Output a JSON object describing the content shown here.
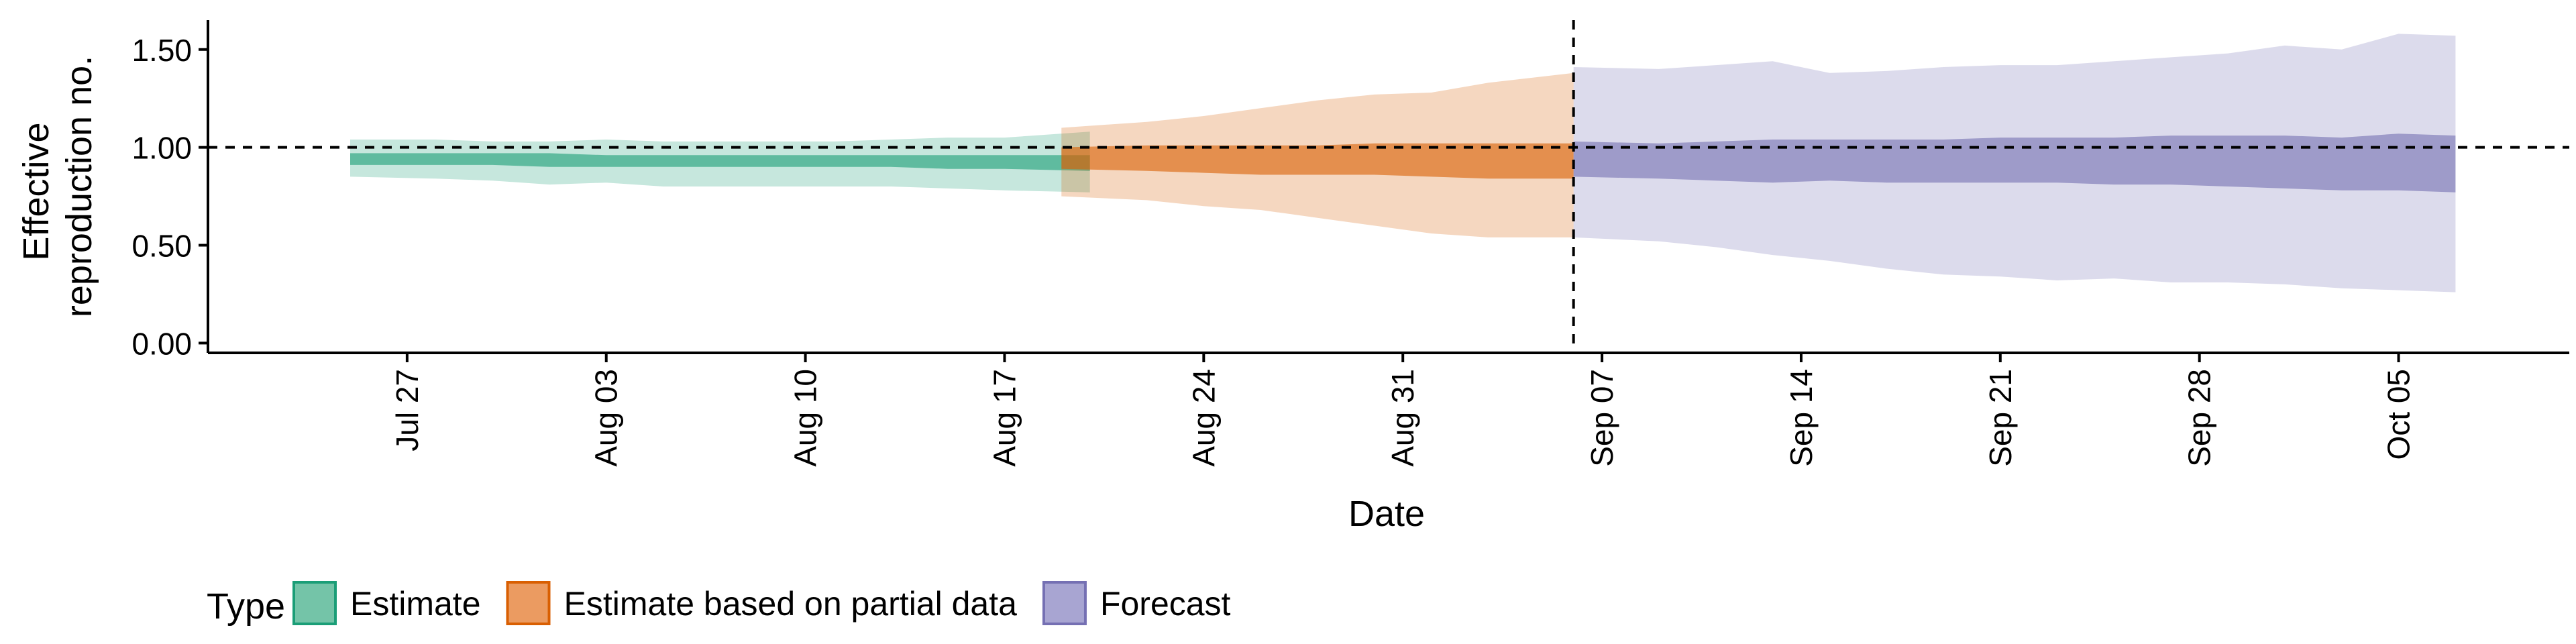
{
  "chart_data": {
    "type": "area",
    "title": "",
    "xlabel": "Date",
    "ylabel": [
      "Effective",
      "reproduction no."
    ],
    "ylim": [
      -0.05,
      1.65
    ],
    "xlim": [
      "2021-07-20",
      "2021-10-11"
    ],
    "y_ticks": [
      0,
      0.5,
      1,
      1.5
    ],
    "y_tick_labels": [
      "0.00",
      "0.50",
      "1.00",
      "1.50"
    ],
    "x_ticks": [
      "2021-07-27",
      "2021-08-03",
      "2021-08-10",
      "2021-08-17",
      "2021-08-24",
      "2021-08-31",
      "2021-09-07",
      "2021-09-14",
      "2021-09-21",
      "2021-09-28",
      "2021-10-05"
    ],
    "x_tick_labels": [
      "Jul 27",
      "Aug 03",
      "Aug 10",
      "Aug 17",
      "Aug 24",
      "Aug 31",
      "Sep 07",
      "Sep 14",
      "Sep 21",
      "Sep 28",
      "Oct 05"
    ],
    "reference_lines": [
      {
        "axis": "y",
        "value": 1,
        "style": "dashed"
      },
      {
        "axis": "x",
        "value": "2021-09-06",
        "style": "dashed"
      }
    ],
    "grid": false,
    "legend": {
      "title": "Type",
      "position": "bottom-left",
      "items": [
        {
          "label": "Estimate",
          "fill": "#74c4a8",
          "stroke": "#1b9e77"
        },
        {
          "label": "Estimate based on partial data",
          "fill": "#eb9b61",
          "stroke": "#d95f02"
        },
        {
          "label": "Forecast",
          "fill": "#a8a5d2",
          "stroke": "#7570b3"
        }
      ]
    },
    "series": [
      {
        "name": "Estimate",
        "color": "#1b9e77",
        "x": [
          "2021-07-26",
          "2021-07-28",
          "2021-07-30",
          "2021-08-01",
          "2021-08-03",
          "2021-08-05",
          "2021-08-07",
          "2021-08-09",
          "2021-08-11",
          "2021-08-13",
          "2021-08-15",
          "2021-08-17",
          "2021-08-19"
        ],
        "lower_90": [
          0.85,
          0.84,
          0.83,
          0.81,
          0.82,
          0.8,
          0.8,
          0.8,
          0.8,
          0.8,
          0.79,
          0.78,
          0.77
        ],
        "upper_90": [
          1.04,
          1.04,
          1.03,
          1.03,
          1.04,
          1.03,
          1.03,
          1.03,
          1.03,
          1.04,
          1.05,
          1.05,
          1.08
        ],
        "lower_50": [
          0.91,
          0.91,
          0.91,
          0.9,
          0.9,
          0.9,
          0.9,
          0.9,
          0.9,
          0.9,
          0.89,
          0.89,
          0.88
        ],
        "upper_50": [
          0.97,
          0.97,
          0.97,
          0.97,
          0.96,
          0.96,
          0.96,
          0.96,
          0.96,
          0.96,
          0.96,
          0.96,
          0.96
        ]
      },
      {
        "name": "Estimate based on partial data",
        "color": "#d95f02",
        "x": [
          "2021-08-20",
          "2021-08-22",
          "2021-08-24",
          "2021-08-26",
          "2021-08-28",
          "2021-08-30",
          "2021-09-01",
          "2021-09-03",
          "2021-09-05"
        ],
        "lower_90": [
          0.75,
          0.73,
          0.7,
          0.68,
          0.64,
          0.6,
          0.56,
          0.54,
          0.54
        ],
        "upper_90": [
          1.1,
          1.13,
          1.16,
          1.2,
          1.24,
          1.27,
          1.28,
          1.33,
          1.38
        ],
        "lower_50": [
          0.89,
          0.88,
          0.87,
          0.86,
          0.86,
          0.86,
          0.85,
          0.84,
          0.84
        ],
        "upper_50": [
          1.0,
          1.01,
          1.01,
          1.01,
          1.01,
          1.02,
          1.02,
          1.02,
          1.02
        ]
      },
      {
        "name": "Forecast",
        "color": "#7570b3",
        "x": [
          "2021-09-07",
          "2021-09-09",
          "2021-09-11",
          "2021-09-13",
          "2021-09-15",
          "2021-09-17",
          "2021-09-19",
          "2021-09-21",
          "2021-09-23",
          "2021-09-25",
          "2021-09-27",
          "2021-09-29",
          "2021-10-01",
          "2021-10-03",
          "2021-10-05",
          "2021-10-06"
        ],
        "lower_90": [
          0.54,
          0.52,
          0.49,
          0.45,
          0.42,
          0.38,
          0.35,
          0.34,
          0.32,
          0.33,
          0.31,
          0.31,
          0.3,
          0.28,
          0.27,
          0.26
        ],
        "upper_90": [
          1.41,
          1.4,
          1.42,
          1.44,
          1.38,
          1.39,
          1.41,
          1.42,
          1.42,
          1.44,
          1.46,
          1.48,
          1.52,
          1.5,
          1.58,
          1.57
        ],
        "lower_50": [
          0.85,
          0.84,
          0.83,
          0.82,
          0.83,
          0.82,
          0.82,
          0.82,
          0.82,
          0.81,
          0.81,
          0.8,
          0.79,
          0.78,
          0.78,
          0.77
        ],
        "upper_50": [
          1.03,
          1.02,
          1.03,
          1.04,
          1.04,
          1.04,
          1.04,
          1.05,
          1.05,
          1.05,
          1.06,
          1.06,
          1.06,
          1.05,
          1.07,
          1.06
        ]
      }
    ]
  }
}
